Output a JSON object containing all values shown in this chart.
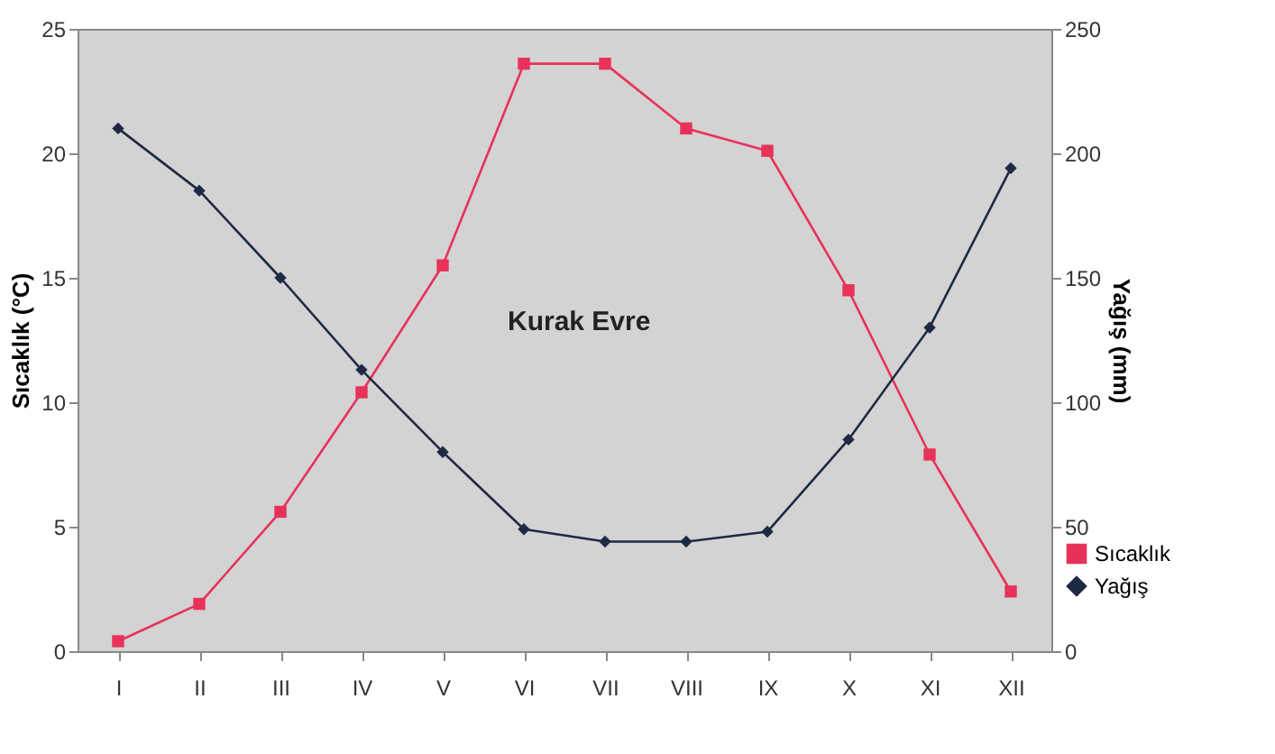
{
  "chart_data": {
    "type": "line",
    "ylabel": "Sıcaklık (°C)",
    "y2label": "Yağış (mm)",
    "categories": [
      "I",
      "II",
      "III",
      "IV",
      "V",
      "VI",
      "VII",
      "VIII",
      "IX",
      "X",
      "XI",
      "XII"
    ],
    "series": [
      {
        "name": "Sıcaklık",
        "color": "#e8325a",
        "marker": "square",
        "values": [
          0.4,
          1.9,
          5.6,
          10.4,
          15.5,
          23.6,
          23.6,
          21.0,
          20.1,
          14.5,
          7.9,
          2.4
        ]
      },
      {
        "name": "Yağış",
        "color": "#1e2a44",
        "marker": "diamond",
        "axis": "y2",
        "values": [
          210,
          185,
          150,
          113,
          80,
          49,
          44,
          44,
          48,
          85,
          130,
          194
        ]
      }
    ],
    "ylim": [
      0,
      25
    ],
    "yticks": [
      0,
      5,
      10,
      15,
      20,
      25
    ],
    "y2lim": [
      0,
      250
    ],
    "y2ticks": [
      0,
      50,
      100,
      150,
      200,
      250
    ],
    "annotations": [
      "Kurak Evre"
    ],
    "grid": false,
    "legend": "bottom right",
    "line_style": "solid"
  }
}
